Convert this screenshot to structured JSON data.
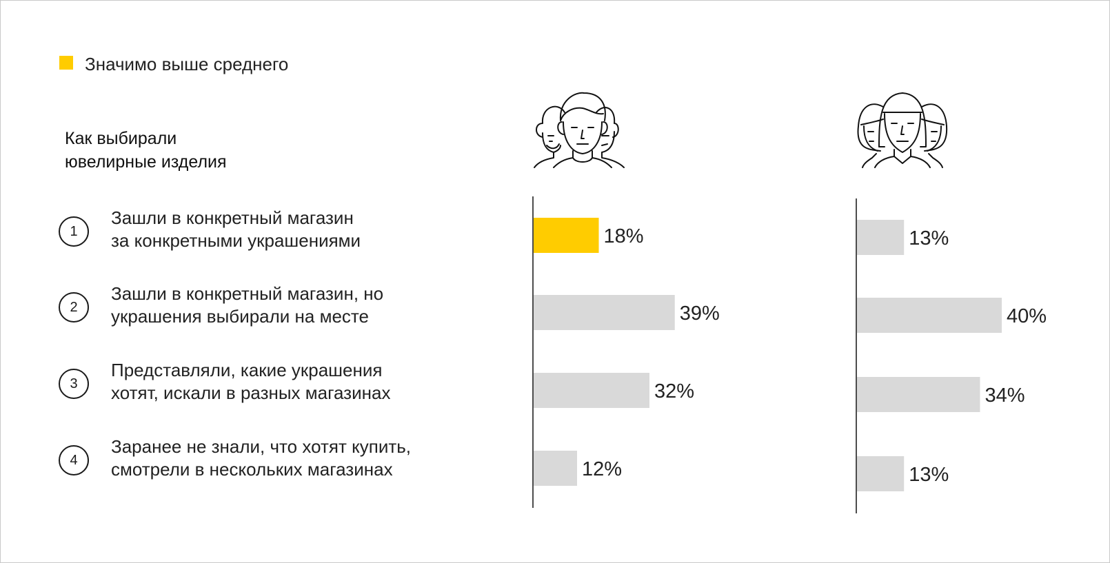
{
  "legend": {
    "label": "Значимо выше среднего",
    "highlight_color": "#FFCC00",
    "default_color": "#D9D9D9"
  },
  "question": {
    "line1": "Как выбирали",
    "line2": "ювелирные изделия"
  },
  "groups": [
    {
      "icon": "men-group-icon"
    },
    {
      "icon": "women-group-icon"
    }
  ],
  "rows": [
    {
      "num": "1",
      "line1": "Зашли в конкретный магазин",
      "line2": "за конкретными украшениями"
    },
    {
      "num": "2",
      "line1": "Зашли в конкретный магазин, но",
      "line2": "украшения выбирали на месте"
    },
    {
      "num": "3",
      "line1": "Представляли, какие украшения",
      "line2": "хотят, искали в разных магазинах"
    },
    {
      "num": "4",
      "line1": "Заранее не знали, что хотят купить,",
      "line2": "смотрели в нескольких магазинах"
    }
  ],
  "chart_data": {
    "type": "bar",
    "orientation": "horizontal",
    "categories": [
      "1",
      "2",
      "3",
      "4"
    ],
    "series": [
      {
        "values": [
          18,
          39,
          32,
          12
        ],
        "labels": [
          "18%",
          "39%",
          "32%",
          "12%"
        ],
        "highlight": [
          true,
          false,
          false,
          false
        ]
      },
      {
        "values": [
          13,
          40,
          34,
          13
        ],
        "labels": [
          "13%",
          "40%",
          "34%",
          "13%"
        ],
        "highlight": [
          false,
          false,
          false,
          false
        ]
      }
    ],
    "unit": "%",
    "grid": false,
    "legend_position": "top-left"
  }
}
